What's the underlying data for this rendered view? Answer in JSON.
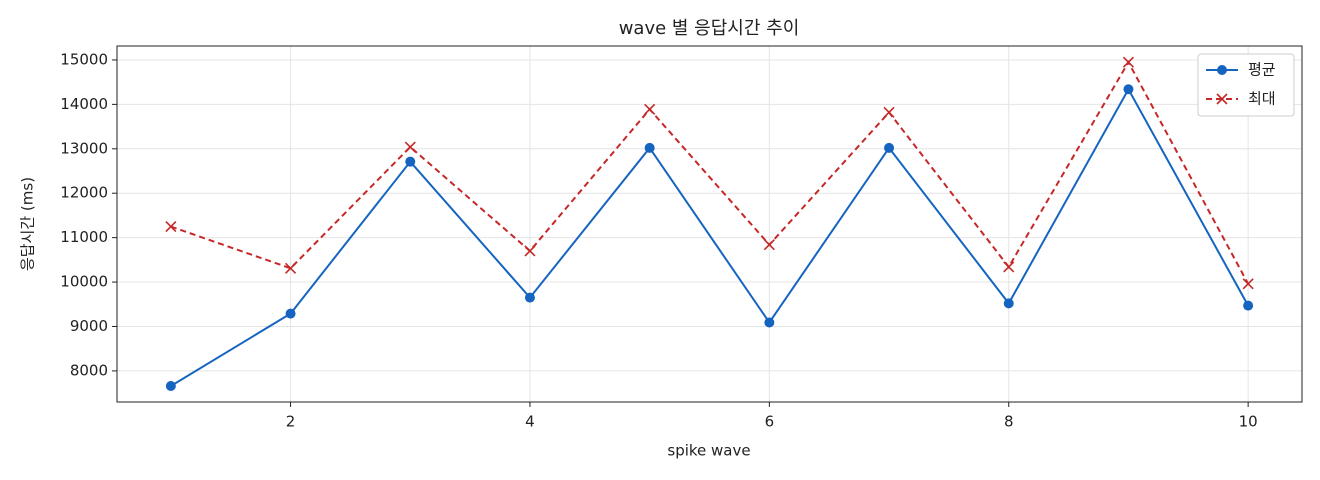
{
  "chart_data": {
    "type": "line",
    "title": "wave 별 응답시간 추이",
    "x_label": "spike wave",
    "y_label": "응답시간 (ms)",
    "x": [
      1,
      2,
      3,
      4,
      5,
      6,
      7,
      8,
      9,
      10
    ],
    "series": [
      {
        "name": "평균",
        "color": "#1565c0",
        "marker": "o",
        "dash": false,
        "values": [
          7660,
          9290,
          12710,
          9650,
          13020,
          9090,
          13020,
          9520,
          14340,
          9470
        ]
      },
      {
        "name": "최대",
        "color": "#c62828",
        "marker": "x",
        "dash": true,
        "values": [
          11250,
          10310,
          13040,
          10700,
          13890,
          10840,
          13820,
          10340,
          14950,
          9960
        ]
      }
    ],
    "xlim": [
      0.55,
      10.45
    ],
    "xticks": [
      2,
      4,
      6,
      8,
      10
    ],
    "ylim": [
      7300,
      15314
    ],
    "yticks": [
      8000,
      9000,
      10000,
      11000,
      12000,
      13000,
      14000,
      15000
    ],
    "grid": true,
    "legend": "upper right"
  }
}
